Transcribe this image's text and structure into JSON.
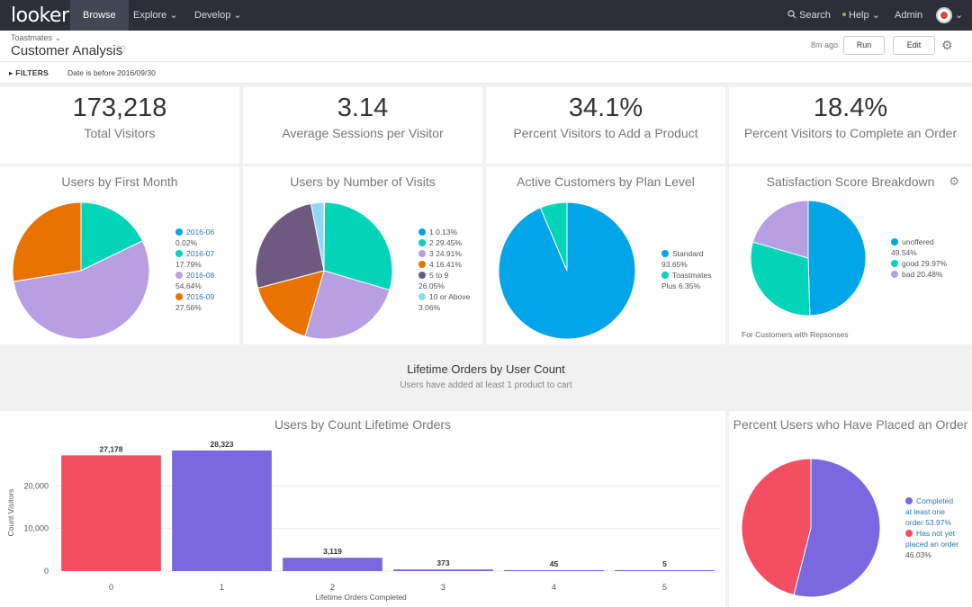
{
  "nav": {
    "logo": "looker",
    "tabs": [
      "Browse",
      "Explore",
      "Develop"
    ],
    "search": "Search",
    "help": "Help",
    "admin": "Admin"
  },
  "header": {
    "breadcrumb": "Toastmates",
    "title": "Customer Analysis",
    "ago": "8m ago",
    "run_label": "Run",
    "edit_label": "Edit"
  },
  "filters": {
    "label": "FILTERS",
    "text": "Date is before 2016/09/30"
  },
  "kpis": [
    {
      "value": "173,218",
      "label": "Total Visitors"
    },
    {
      "value": "3.14",
      "label": "Average Sessions per Visitor"
    },
    {
      "value": "34.1%",
      "label": "Percent Visitors to Add a Product"
    },
    {
      "value": "18.4%",
      "label": "Percent Visitors to Complete an Order"
    }
  ],
  "pies": {
    "first_month": {
      "title": "Users by First Month",
      "legend": [
        {
          "label": "2016-06",
          "value": "0.02%",
          "color": "#02a5e8"
        },
        {
          "label": "2016-07",
          "value": "17.79%",
          "color": "#02d4b8"
        },
        {
          "label": "2016-08",
          "value": "54.64%",
          "color": "#b69fe3"
        },
        {
          "label": "2016-09",
          "value": "27.56%",
          "color": "#e87300"
        }
      ]
    },
    "visits": {
      "title": "Users by Number of Visits",
      "legend": [
        {
          "label": "1 0.13%",
          "value": "",
          "color": "#02a5e8"
        },
        {
          "label": "2 29.45%",
          "value": "",
          "color": "#02d4b8"
        },
        {
          "label": "3 24.91%",
          "value": "",
          "color": "#b69fe3"
        },
        {
          "label": "4 16.41%",
          "value": "",
          "color": "#e87300"
        },
        {
          "label": "5 to 9",
          "value": "26.05%",
          "color": "#6e5a80"
        },
        {
          "label": "10 or Above",
          "value": "3.06%",
          "color": "#8fd8f6"
        }
      ]
    },
    "plan": {
      "title": "Active Customers by Plan Level",
      "legend": [
        {
          "label": "Standard",
          "value": "93.65%",
          "color": "#02a5e8"
        },
        {
          "label": "Toastmates",
          "value": "Plus 6.35%",
          "color": "#02d4b8"
        }
      ]
    },
    "satisfaction": {
      "title": "Satisfaction Score Breakdown",
      "footnote": "For Customers with Repsonses",
      "legend": [
        {
          "label": "unoffered",
          "value": "49.54%",
          "color": "#02a5e8"
        },
        {
          "label": "good 29.97%",
          "value": "",
          "color": "#02d4b8"
        },
        {
          "label": "bad 20.48%",
          "value": "",
          "color": "#b69fe3"
        }
      ]
    },
    "orders": {
      "title": "Percent Users who Have Placed an Order",
      "legend": [
        {
          "label": "Completed",
          "line2": "at least one",
          "value": "order 53.97%",
          "color": "#7b68e0"
        },
        {
          "label": "Has not yet",
          "line2": "placed an order",
          "value": "46.03%",
          "color": "#f44e63"
        }
      ]
    }
  },
  "text_section": {
    "title": "Lifetime Orders by User Count",
    "subtitle": "Users have added at least 1 product to cart"
  },
  "chart_data": [
    {
      "type": "pie",
      "title": "Users by First Month",
      "categories": [
        "2016-06",
        "2016-07",
        "2016-08",
        "2016-09"
      ],
      "values": [
        0.02,
        17.79,
        54.64,
        27.56
      ],
      "colors": [
        "#02a5e8",
        "#02d4b8",
        "#b69fe3",
        "#e87300"
      ]
    },
    {
      "type": "pie",
      "title": "Users by Number of Visits",
      "categories": [
        "1",
        "2",
        "3",
        "4",
        "5 to 9",
        "10 or Above"
      ],
      "values": [
        0.13,
        29.45,
        24.91,
        16.41,
        26.05,
        3.06
      ],
      "colors": [
        "#02a5e8",
        "#02d4b8",
        "#b69fe3",
        "#e87300",
        "#6e5a80",
        "#8fd8f6"
      ]
    },
    {
      "type": "pie",
      "title": "Active Customers by Plan Level",
      "categories": [
        "Standard",
        "Toastmates Plus"
      ],
      "values": [
        93.65,
        6.35
      ],
      "colors": [
        "#02a5e8",
        "#02d4b8"
      ]
    },
    {
      "type": "pie",
      "title": "Satisfaction Score Breakdown",
      "categories": [
        "unoffered",
        "good",
        "bad"
      ],
      "values": [
        49.54,
        29.97,
        20.48
      ],
      "colors": [
        "#02a5e8",
        "#02d4b8",
        "#b69fe3"
      ]
    },
    {
      "type": "bar",
      "title": "Users by Count Lifetime Orders",
      "xlabel": "Lifetime Orders Completed",
      "ylabel": "Count Visitors",
      "categories": [
        "0",
        "1",
        "2",
        "3",
        "4",
        "5"
      ],
      "values": [
        27178,
        28323,
        3119,
        373,
        45,
        5
      ],
      "value_labels": [
        "27,178",
        "28,323",
        "3,119",
        "373",
        "45",
        "5"
      ],
      "colors": [
        "#f44e63",
        "#7b68e0",
        "#7b68e0",
        "#7b68e0",
        "#7b68e0",
        "#7b68e0"
      ],
      "yticks": [
        0,
        10000,
        20000
      ],
      "ytick_labels": [
        "0",
        "10,000",
        "20,000"
      ],
      "ylim": [
        0,
        30000
      ]
    },
    {
      "type": "pie",
      "title": "Percent Users who Have Placed an Order",
      "categories": [
        "Completed at least one order",
        "Has not yet placed an order"
      ],
      "values": [
        53.97,
        46.03
      ],
      "colors": [
        "#7b68e0",
        "#f44e63"
      ]
    }
  ]
}
